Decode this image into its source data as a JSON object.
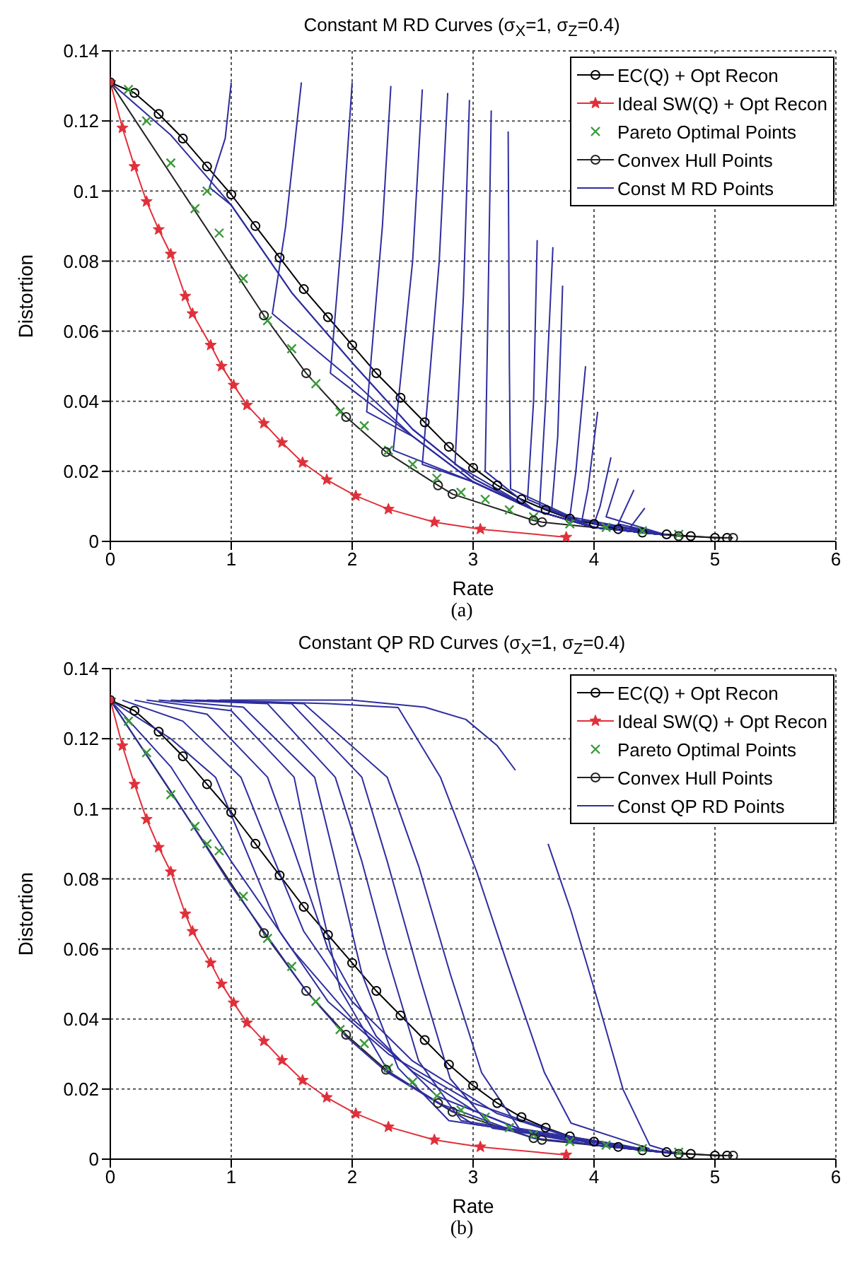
{
  "chart_data": [
    {
      "type": "line",
      "title": "Constant M RD Curves (σ$_{X}$=1, σ$_{Z}$=0.4)",
      "xlabel": "Rate",
      "ylabel": "Distortion",
      "xlim": [
        0,
        6
      ],
      "ylim": [
        0,
        0.14
      ],
      "xticks": [
        0,
        1,
        2,
        3,
        4,
        5,
        6
      ],
      "yticks": [
        0,
        0.02,
        0.04,
        0.06,
        0.08,
        0.1,
        0.12,
        0.14
      ],
      "grid": true,
      "legend": "top right",
      "annotations": [
        "(a)"
      ],
      "series": [
        {
          "name": "EC(Q) + Opt Recon",
          "type": "line",
          "color": "#000000",
          "marker": "circle",
          "x": [
            0,
            0.2,
            0.4,
            0.6,
            0.8,
            1,
            1.2,
            1.4,
            1.6,
            1.8,
            2,
            2.2,
            2.4,
            2.6,
            2.8,
            3,
            3.2,
            3.4,
            3.6,
            3.8,
            4,
            4.2,
            4.4,
            4.6,
            4.8,
            5,
            5.1
          ],
          "values": [
            0.131,
            0.128,
            0.122,
            0.115,
            0.107,
            0.099,
            0.09,
            0.081,
            0.072,
            0.064,
            0.056,
            0.048,
            0.041,
            0.034,
            0.027,
            0.021,
            0.016,
            0.012,
            0.009,
            0.0065,
            0.005,
            0.0035,
            0.0025,
            0.002,
            0.0015,
            0.001,
            0.001
          ]
        },
        {
          "name": "Ideal SW(Q) + Opt Recon",
          "type": "line",
          "color": "#e0303a",
          "marker": "star",
          "x": [
            0,
            0.1,
            0.2,
            0.3,
            0.4,
            0.5,
            0.62,
            0.68,
            0.83,
            0.92,
            1.02,
            1.13,
            1.27,
            1.42,
            1.59,
            1.79,
            2.03,
            2.3,
            2.68,
            3.06,
            3.77
          ],
          "values": [
            0.131,
            0.118,
            0.107,
            0.097,
            0.089,
            0.082,
            0.07,
            0.065,
            0.056,
            0.05,
            0.0446,
            0.0389,
            0.0337,
            0.0282,
            0.0225,
            0.0176,
            0.013,
            0.0092,
            0.0055,
            0.0035,
            0.0012
          ]
        },
        {
          "name": "Pareto Optimal Points",
          "type": "scatter",
          "color": "#3a9a3a",
          "marker": "cross",
          "x": [
            0.15,
            0.3,
            0.5,
            0.7,
            0.8,
            0.9,
            1.1,
            1.3,
            1.5,
            1.7,
            1.9,
            2.1,
            2.3,
            2.5,
            2.7,
            2.9,
            3.1,
            3.3,
            3.5,
            3.8,
            4.1,
            4.4,
            4.7
          ],
          "values": [
            0.129,
            0.12,
            0.108,
            0.095,
            0.1,
            0.088,
            0.075,
            0.063,
            0.055,
            0.045,
            0.037,
            0.033,
            0.026,
            0.022,
            0.018,
            0.014,
            0.012,
            0.009,
            0.007,
            0.005,
            0.004,
            0.003,
            0.002
          ]
        },
        {
          "name": "Convex Hull Points",
          "type": "line",
          "color": "#222222",
          "marker": "circle",
          "x": [
            0,
            1.27,
            1.62,
            1.95,
            2.28,
            2.71,
            2.83,
            3.5,
            3.57,
            4.7,
            5.15
          ],
          "values": [
            0.131,
            0.0645,
            0.048,
            0.0355,
            0.0255,
            0.016,
            0.0135,
            0.006,
            0.0055,
            0.0015,
            0.001
          ]
        },
        {
          "name": "Const M RD Points",
          "type": "line",
          "color": "#2e2e9e",
          "marker": "none",
          "x": [
            0,
            0.5,
            1,
            1.5,
            2,
            2.5,
            3,
            3.5,
            4,
            4.6
          ],
          "values": [
            0.131,
            0.116,
            0.096,
            0.071,
            0.051,
            0.032,
            0.018,
            0.009,
            0.004,
            0.0018
          ]
        },
        {
          "type": "line",
          "color": "#2e2e9e",
          "marker": "none",
          "x": [
            1,
            0.95,
            0.82,
            1,
            1.5,
            2,
            2.5,
            3,
            3.5,
            4,
            4.6
          ],
          "values": [
            0.131,
            0.115,
            0.101,
            0.096,
            0.071,
            0.051,
            0.032,
            0.018,
            0.009,
            0.004,
            0.0018
          ]
        },
        {
          "type": "line",
          "color": "#2e2e9e",
          "marker": "none",
          "x": [
            1.58,
            1.45,
            1.34,
            2,
            2.5,
            3,
            3.5,
            4,
            4.6
          ],
          "values": [
            0.131,
            0.09,
            0.065,
            0.046,
            0.03,
            0.017,
            0.009,
            0.004,
            0.0018
          ]
        },
        {
          "type": "line",
          "color": "#2e2e9e",
          "marker": "none",
          "x": [
            2,
            1.92,
            1.82,
            2.5,
            3,
            3.5,
            4,
            4.6
          ],
          "values": [
            0.131,
            0.09,
            0.048,
            0.03,
            0.017,
            0.009,
            0.004,
            0.0018
          ]
        },
        {
          "type": "line",
          "color": "#2e2e9e",
          "marker": "none",
          "x": [
            2.32,
            2.25,
            2.12,
            2.5,
            3,
            3.5,
            4,
            4.6
          ],
          "values": [
            0.13,
            0.09,
            0.037,
            0.03,
            0.017,
            0.009,
            0.004,
            0.0018
          ]
        },
        {
          "type": "line",
          "color": "#2e2e9e",
          "marker": "none",
          "x": [
            2.58,
            2.5,
            2.34,
            3,
            3.5,
            4,
            4.6
          ],
          "values": [
            0.129,
            0.08,
            0.026,
            0.017,
            0.009,
            0.004,
            0.0018
          ]
        },
        {
          "type": "line",
          "color": "#2e2e9e",
          "marker": "none",
          "x": [
            2.79,
            2.72,
            2.58,
            3,
            3.5,
            4,
            4.6
          ],
          "values": [
            0.128,
            0.08,
            0.022,
            0.017,
            0.009,
            0.004,
            0.0018
          ]
        },
        {
          "type": "line",
          "color": "#2e2e9e",
          "marker": "none",
          "x": [
            2.97,
            2.92,
            2.85,
            3.5,
            4,
            4.6
          ],
          "values": [
            0.126,
            0.07,
            0.022,
            0.009,
            0.004,
            0.0018
          ]
        },
        {
          "type": "line",
          "color": "#2e2e9e",
          "marker": "none",
          "x": [
            3.15,
            3.12,
            3.1,
            3.5,
            4,
            4.6
          ],
          "values": [
            0.123,
            0.06,
            0.02,
            0.009,
            0.004,
            0.0018
          ]
        },
        {
          "type": "line",
          "color": "#2e2e9e",
          "marker": "none",
          "x": [
            3.29,
            3.3,
            3.31,
            4,
            4.6
          ],
          "values": [
            0.117,
            0.05,
            0.015,
            0.004,
            0.0018
          ]
        },
        {
          "type": "line",
          "color": "#2e2e9e",
          "marker": "none",
          "x": [
            3.53,
            3.5,
            3.45,
            4,
            4.6
          ],
          "values": [
            0.086,
            0.04,
            0.012,
            0.004,
            0.0018
          ]
        },
        {
          "type": "line",
          "color": "#2e2e9e",
          "marker": "none",
          "x": [
            3.66,
            3.6,
            3.55,
            4,
            4.6
          ],
          "values": [
            0.084,
            0.04,
            0.01,
            0.004,
            0.0018
          ]
        },
        {
          "type": "line",
          "color": "#2e2e9e",
          "marker": "none",
          "x": [
            3.74,
            3.7,
            3.65,
            4,
            4.6
          ],
          "values": [
            0.073,
            0.03,
            0.009,
            0.004,
            0.0018
          ]
        },
        {
          "type": "line",
          "color": "#2e2e9e",
          "marker": "none",
          "x": [
            3.93,
            3.85,
            3.8,
            4.6
          ],
          "values": [
            0.05,
            0.02,
            0.007,
            0.0018
          ]
        },
        {
          "type": "line",
          "color": "#2e2e9e",
          "marker": "none",
          "x": [
            4.03,
            3.95,
            3.9,
            4.6
          ],
          "values": [
            0.037,
            0.015,
            0.006,
            0.0018
          ]
        },
        {
          "type": "line",
          "color": "#2e2e9e",
          "marker": "none",
          "x": [
            4.14,
            4.05,
            4,
            4.6
          ],
          "values": [
            0.024,
            0.01,
            0.005,
            0.0018
          ]
        },
        {
          "type": "line",
          "color": "#2e2e9e",
          "marker": "none",
          "x": [
            4.2,
            4.1,
            4.6
          ],
          "values": [
            0.018,
            0.007,
            0.0018
          ]
        },
        {
          "type": "line",
          "color": "#2e2e9e",
          "marker": "none",
          "x": [
            4.33,
            4.2,
            4.6
          ],
          "values": [
            0.0147,
            0.005,
            0.0018
          ]
        },
        {
          "type": "line",
          "color": "#2e2e9e",
          "marker": "none",
          "x": [
            4.42,
            4.3,
            4.6
          ],
          "values": [
            0.0095,
            0.004,
            0.0018
          ]
        }
      ]
    },
    {
      "type": "line",
      "title": "Constant QP RD Curves (σ$_{X}$=1, σ$_{Z}$=0.4)",
      "xlabel": "Rate",
      "ylabel": "Distortion",
      "xlim": [
        0,
        6
      ],
      "ylim": [
        0,
        0.14
      ],
      "xticks": [
        0,
        1,
        2,
        3,
        4,
        5,
        6
      ],
      "yticks": [
        0,
        0.02,
        0.04,
        0.06,
        0.08,
        0.1,
        0.12,
        0.14
      ],
      "grid": true,
      "legend": "top right",
      "annotations": [
        "(b)"
      ],
      "series": [
        {
          "name": "EC(Q) + Opt Recon",
          "type": "line",
          "color": "#000000",
          "marker": "circle",
          "x": [
            0,
            0.2,
            0.4,
            0.6,
            0.8,
            1,
            1.2,
            1.4,
            1.6,
            1.8,
            2,
            2.2,
            2.4,
            2.6,
            2.8,
            3,
            3.2,
            3.4,
            3.6,
            3.8,
            4,
            4.2,
            4.4,
            4.6,
            4.8,
            5,
            5.1
          ],
          "values": [
            0.131,
            0.128,
            0.122,
            0.115,
            0.107,
            0.099,
            0.09,
            0.081,
            0.072,
            0.064,
            0.056,
            0.048,
            0.041,
            0.034,
            0.027,
            0.021,
            0.016,
            0.012,
            0.009,
            0.0065,
            0.005,
            0.0035,
            0.0025,
            0.002,
            0.0015,
            0.001,
            0.001
          ]
        },
        {
          "name": "Ideal SW(Q) + Opt Recon",
          "type": "line",
          "color": "#e0303a",
          "marker": "star",
          "x": [
            0,
            0.1,
            0.2,
            0.3,
            0.4,
            0.5,
            0.62,
            0.68,
            0.83,
            0.92,
            1.02,
            1.13,
            1.27,
            1.42,
            1.59,
            1.79,
            2.03,
            2.3,
            2.68,
            3.06,
            3.77
          ],
          "values": [
            0.131,
            0.118,
            0.107,
            0.097,
            0.089,
            0.082,
            0.07,
            0.065,
            0.056,
            0.05,
            0.0446,
            0.0389,
            0.0337,
            0.0282,
            0.0225,
            0.0176,
            0.013,
            0.0092,
            0.0055,
            0.0035,
            0.0012
          ]
        },
        {
          "name": "Pareto Optimal Points",
          "type": "scatter",
          "color": "#3a9a3a",
          "marker": "cross",
          "x": [
            0.15,
            0.3,
            0.5,
            0.7,
            0.8,
            0.9,
            1.1,
            1.3,
            1.5,
            1.7,
            1.9,
            2.1,
            2.3,
            2.5,
            2.7,
            2.9,
            3.1,
            3.3,
            3.5,
            3.8,
            4.1,
            4.4,
            4.7
          ],
          "values": [
            0.125,
            0.116,
            0.104,
            0.095,
            0.09,
            0.088,
            0.075,
            0.063,
            0.055,
            0.045,
            0.037,
            0.033,
            0.026,
            0.022,
            0.018,
            0.014,
            0.012,
            0.009,
            0.007,
            0.005,
            0.004,
            0.003,
            0.002
          ]
        },
        {
          "name": "Convex Hull Points",
          "type": "line",
          "color": "#222222",
          "marker": "circle",
          "x": [
            0,
            1.27,
            1.62,
            1.95,
            2.28,
            2.71,
            2.83,
            3.5,
            3.57,
            4.7,
            5.15
          ],
          "values": [
            0.131,
            0.0645,
            0.048,
            0.0355,
            0.0255,
            0.016,
            0.0135,
            0.006,
            0.0055,
            0.0015,
            0.001
          ]
        },
        {
          "name": "Const QP RD Points",
          "type": "line",
          "color": "#2e2e9e",
          "marker": "none",
          "x": [
            0,
            0.5,
            1,
            1.27,
            1.62,
            1.95,
            2.28,
            2.71,
            3.5,
            4.65
          ],
          "values": [
            0.131,
            0.105,
            0.078,
            0.065,
            0.048,
            0.035,
            0.025,
            0.016,
            0.006,
            0.0016
          ]
        },
        {
          "type": "line",
          "color": "#2e2e9e",
          "marker": "none",
          "x": [
            0,
            0.5,
            1,
            1.5,
            2,
            2.5,
            3,
            3.5,
            4,
            4.5
          ],
          "values": [
            0.131,
            0.112,
            0.085,
            0.06,
            0.04,
            0.025,
            0.014,
            0.007,
            0.004,
            0.0022
          ]
        },
        {
          "type": "line",
          "color": "#2e2e9e",
          "marker": "none",
          "x": [
            0,
            0.5,
            0.87,
            1.1,
            1.4,
            1.8,
            2.3,
            3,
            4,
            4.4
          ],
          "values": [
            0.131,
            0.12,
            0.109,
            0.09,
            0.065,
            0.045,
            0.03,
            0.016,
            0.004,
            0.0026
          ]
        },
        {
          "type": "line",
          "color": "#2e2e9e",
          "marker": "none",
          "x": [
            0.1,
            0.6,
            1.08,
            1.3,
            1.6,
            2,
            2.5,
            3.2,
            4,
            4.6
          ],
          "values": [
            0.131,
            0.125,
            0.109,
            0.09,
            0.065,
            0.045,
            0.028,
            0.013,
            0.004,
            0.0018
          ]
        },
        {
          "type": "line",
          "color": "#2e2e9e",
          "marker": "none",
          "x": [
            0.2,
            0.8,
            1.3,
            1.5,
            1.8,
            2.2,
            2.7,
            3.5,
            4.62
          ],
          "values": [
            0.131,
            0.127,
            0.109,
            0.09,
            0.06,
            0.035,
            0.018,
            0.007,
            0.0017
          ]
        },
        {
          "type": "line",
          "color": "#2e2e9e",
          "marker": "none",
          "x": [
            0.3,
            1,
            1.52,
            1.69,
            1.9,
            2.3,
            3,
            4.64
          ],
          "values": [
            0.131,
            0.128,
            0.109,
            0.08,
            0.0485,
            0.025,
            0.01,
            0.0017
          ]
        },
        {
          "type": "line",
          "color": "#2e2e9e",
          "marker": "none",
          "x": [
            0.4,
            1.1,
            1.69,
            1.86,
            2.08,
            2.38,
            2.8,
            4.66
          ],
          "values": [
            0.131,
            0.129,
            0.109,
            0.085,
            0.053,
            0.026,
            0.011,
            0.0016
          ]
        },
        {
          "type": "line",
          "color": "#2e2e9e",
          "marker": "none",
          "x": [
            0.5,
            1.3,
            1.86,
            2.08,
            2.29,
            2.55,
            2.9,
            4.58
          ],
          "values": [
            0.131,
            0.13,
            0.109,
            0.085,
            0.058,
            0.028,
            0.011,
            0.0019
          ]
        },
        {
          "type": "line",
          "color": "#2e2e9e",
          "marker": "none",
          "x": [
            0.6,
            1.5,
            2.08,
            2.29,
            2.55,
            2.81,
            3.16,
            4.52
          ],
          "values": [
            0.131,
            0.13,
            0.109,
            0.085,
            0.053,
            0.023,
            0.0088,
            0.0021
          ]
        },
        {
          "type": "line",
          "color": "#2e2e9e",
          "marker": "none",
          "x": [
            0.7,
            1.6,
            2.29,
            2.55,
            2.81,
            3.07,
            3.38,
            4.24,
            4.48
          ],
          "values": [
            0.131,
            0.13,
            0.109,
            0.0836,
            0.053,
            0.0247,
            0.0088,
            0.004,
            0.0023
          ]
        },
        {
          "type": "line",
          "color": "#2e2e9e",
          "marker": "none",
          "x": [
            0.8,
            1.8,
            2.38,
            2.73,
            3.03,
            3.29,
            3.59,
            3.81,
            4.46
          ],
          "values": [
            0.131,
            0.13,
            0.1289,
            0.109,
            0.082,
            0.055,
            0.0247,
            0.0103,
            0.003
          ]
        },
        {
          "type": "line",
          "color": "#2e2e9e",
          "marker": "none",
          "x": [
            0.9,
            2,
            2.6,
            2.94,
            3.2,
            3.35,
            3.5,
            3.62,
            3.81,
            4.03,
            4.24,
            4.46,
            4.68
          ],
          "values": [
            0.131,
            0.131,
            0.129,
            0.1255,
            0.118,
            0.111,
            null,
            0.09,
            0.0708,
            0.0453,
            0.0199,
            0.004,
            0.0016
          ]
        }
      ]
    }
  ]
}
